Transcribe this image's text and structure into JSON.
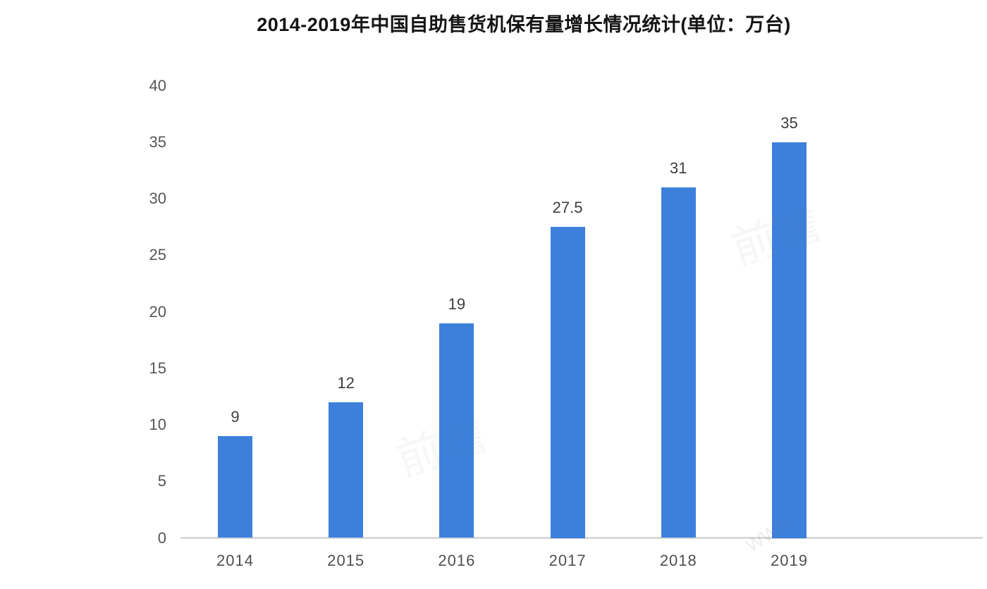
{
  "chart_data": {
    "type": "bar",
    "title": "2014-2019年中国自助售货机保有量增长情况统计(单位：万台)",
    "categories": [
      "2014",
      "2015",
      "2016",
      "2017",
      "2018",
      "2019"
    ],
    "values": [
      9,
      12,
      19,
      27.5,
      31,
      35
    ],
    "value_labels": [
      "9",
      "12",
      "19",
      "27.5",
      "31",
      "35"
    ],
    "y_ticks": [
      0,
      5,
      10,
      15,
      20,
      25,
      30,
      35,
      40
    ],
    "ylim": [
      0,
      40
    ],
    "xlabel": "",
    "ylabel": "",
    "grid": false,
    "legend": null,
    "colors": {
      "bar": "#3d80dc",
      "title": "#141414",
      "value_label": "#3d3d3d",
      "tick_label": "#565656",
      "axis_line": "#d8d8d8",
      "background": "#ffffff"
    }
  },
  "watermarks": [
    {
      "text": "前瞻"
    },
    {
      "text": "前瞻"
    },
    {
      "text": "WWW"
    }
  ]
}
